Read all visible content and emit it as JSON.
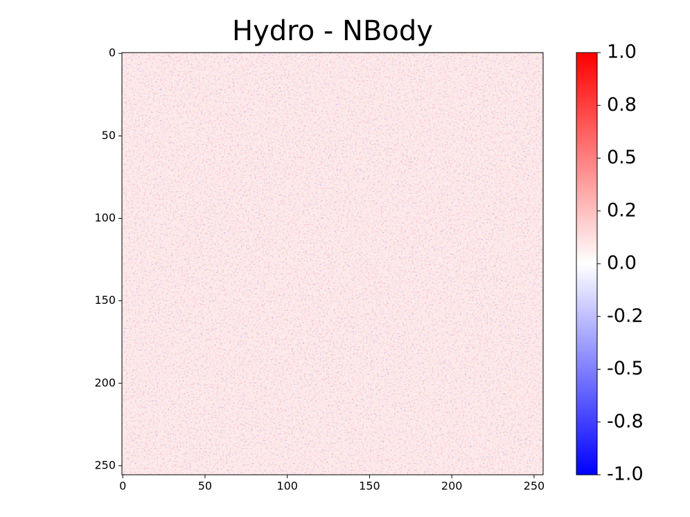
{
  "chart_data": {
    "type": "heatmap",
    "title": "Hydro - NBody",
    "xlim": [
      -0.5,
      255.5
    ],
    "ylim": [
      255.5,
      -0.5
    ],
    "xticks": [
      0,
      50,
      100,
      150,
      200,
      250
    ],
    "yticks": [
      0,
      50,
      100,
      150,
      200,
      250
    ],
    "colorbar": {
      "lim": [
        -1,
        1
      ],
      "colors": [
        "#0000ff",
        "#ffffff",
        "#ff0000"
      ],
      "ticks": [
        {
          "value": 1,
          "label": "1.0"
        },
        {
          "value": 0.75,
          "label": "0.8"
        },
        0.5,
        {
          "value": 0.25,
          "label": "0.2"
        },
        {
          "value": 0,
          "label": "0.0"
        },
        {
          "value": -0.25,
          "label": "-0.2"
        },
        -0.5,
        {
          "value": -0.75,
          "label": "-0.8"
        },
        {
          "value": -1,
          "label": "-1.0"
        }
      ]
    }
  }
}
